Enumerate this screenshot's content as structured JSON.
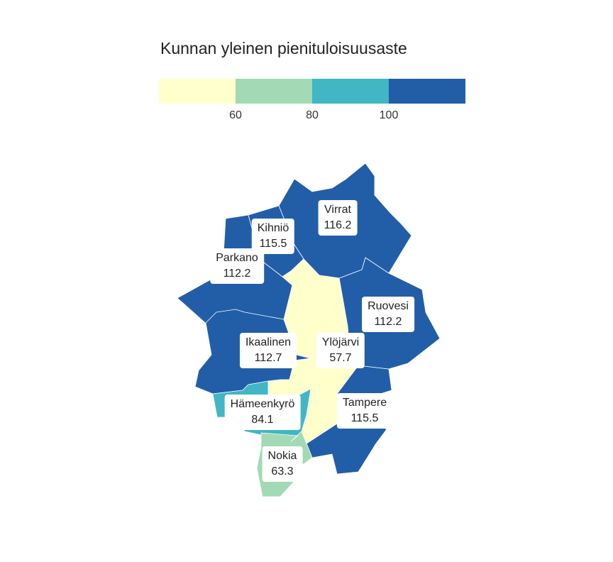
{
  "legend": {
    "title": "Kunnan yleinen pienituloisuusaste",
    "colors": [
      "#ffffcc",
      "#a1dab4",
      "#41b6c4",
      "#225ea8"
    ],
    "ticks": [
      "60",
      "80",
      "100"
    ]
  },
  "municipalities": [
    {
      "id": "virrat",
      "name": "Virrat",
      "value": "116.2",
      "color": "#225ea8"
    },
    {
      "id": "kihnio",
      "name": "Kihniö",
      "value": "115.5",
      "color": "#225ea8"
    },
    {
      "id": "parkano",
      "name": "Parkano",
      "value": "112.2",
      "color": "#225ea8"
    },
    {
      "id": "ruovesi",
      "name": "Ruovesi",
      "value": "112.2",
      "color": "#225ea8"
    },
    {
      "id": "ikaalinen",
      "name": "Ikaalinen",
      "value": "112.7",
      "color": "#225ea8"
    },
    {
      "id": "ylojarvi",
      "name": "Ylöjärvi",
      "value": "57.7",
      "color": "#ffffcc"
    },
    {
      "id": "tampere",
      "name": "Tampere",
      "value": "115.5",
      "color": "#225ea8"
    },
    {
      "id": "hameenkyro",
      "name": "Hämeenkyrö",
      "value": "84.1",
      "color": "#41b6c4"
    },
    {
      "id": "nokia",
      "name": "Nokia",
      "value": "63.3",
      "color": "#a1dab4"
    }
  ]
}
